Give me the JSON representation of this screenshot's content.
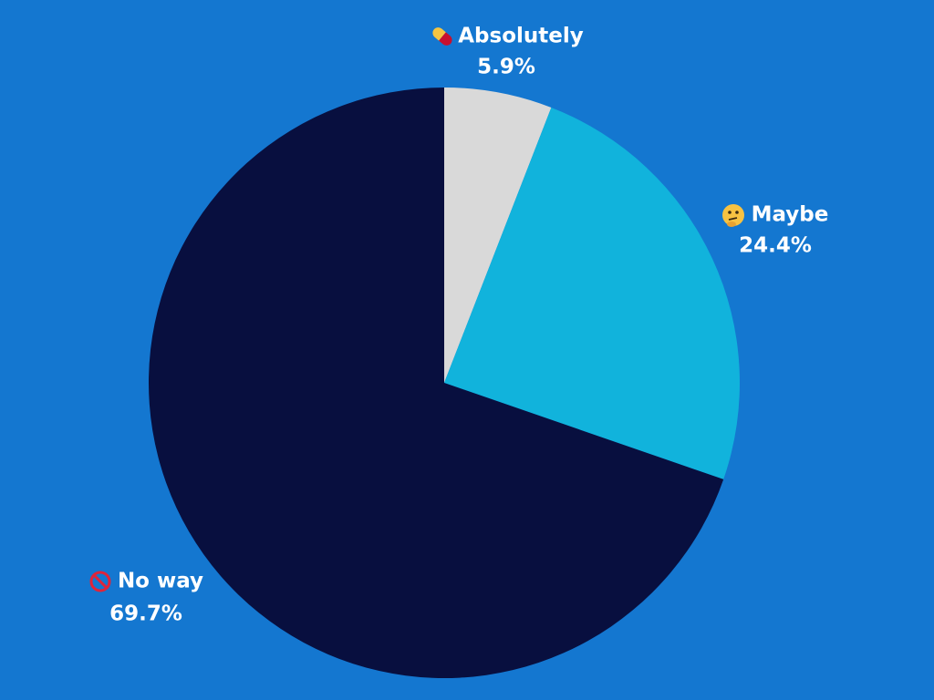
{
  "chart_data": {
    "type": "pie",
    "categories": [
      "Absolutely",
      "Maybe",
      "No way"
    ],
    "values": [
      5.9,
      24.4,
      69.7
    ],
    "value_labels": [
      "5.9%",
      "24.4%",
      "69.7%"
    ],
    "colors": [
      "#d9d9d9",
      "#11b3dc",
      "#080f3f"
    ]
  }
}
